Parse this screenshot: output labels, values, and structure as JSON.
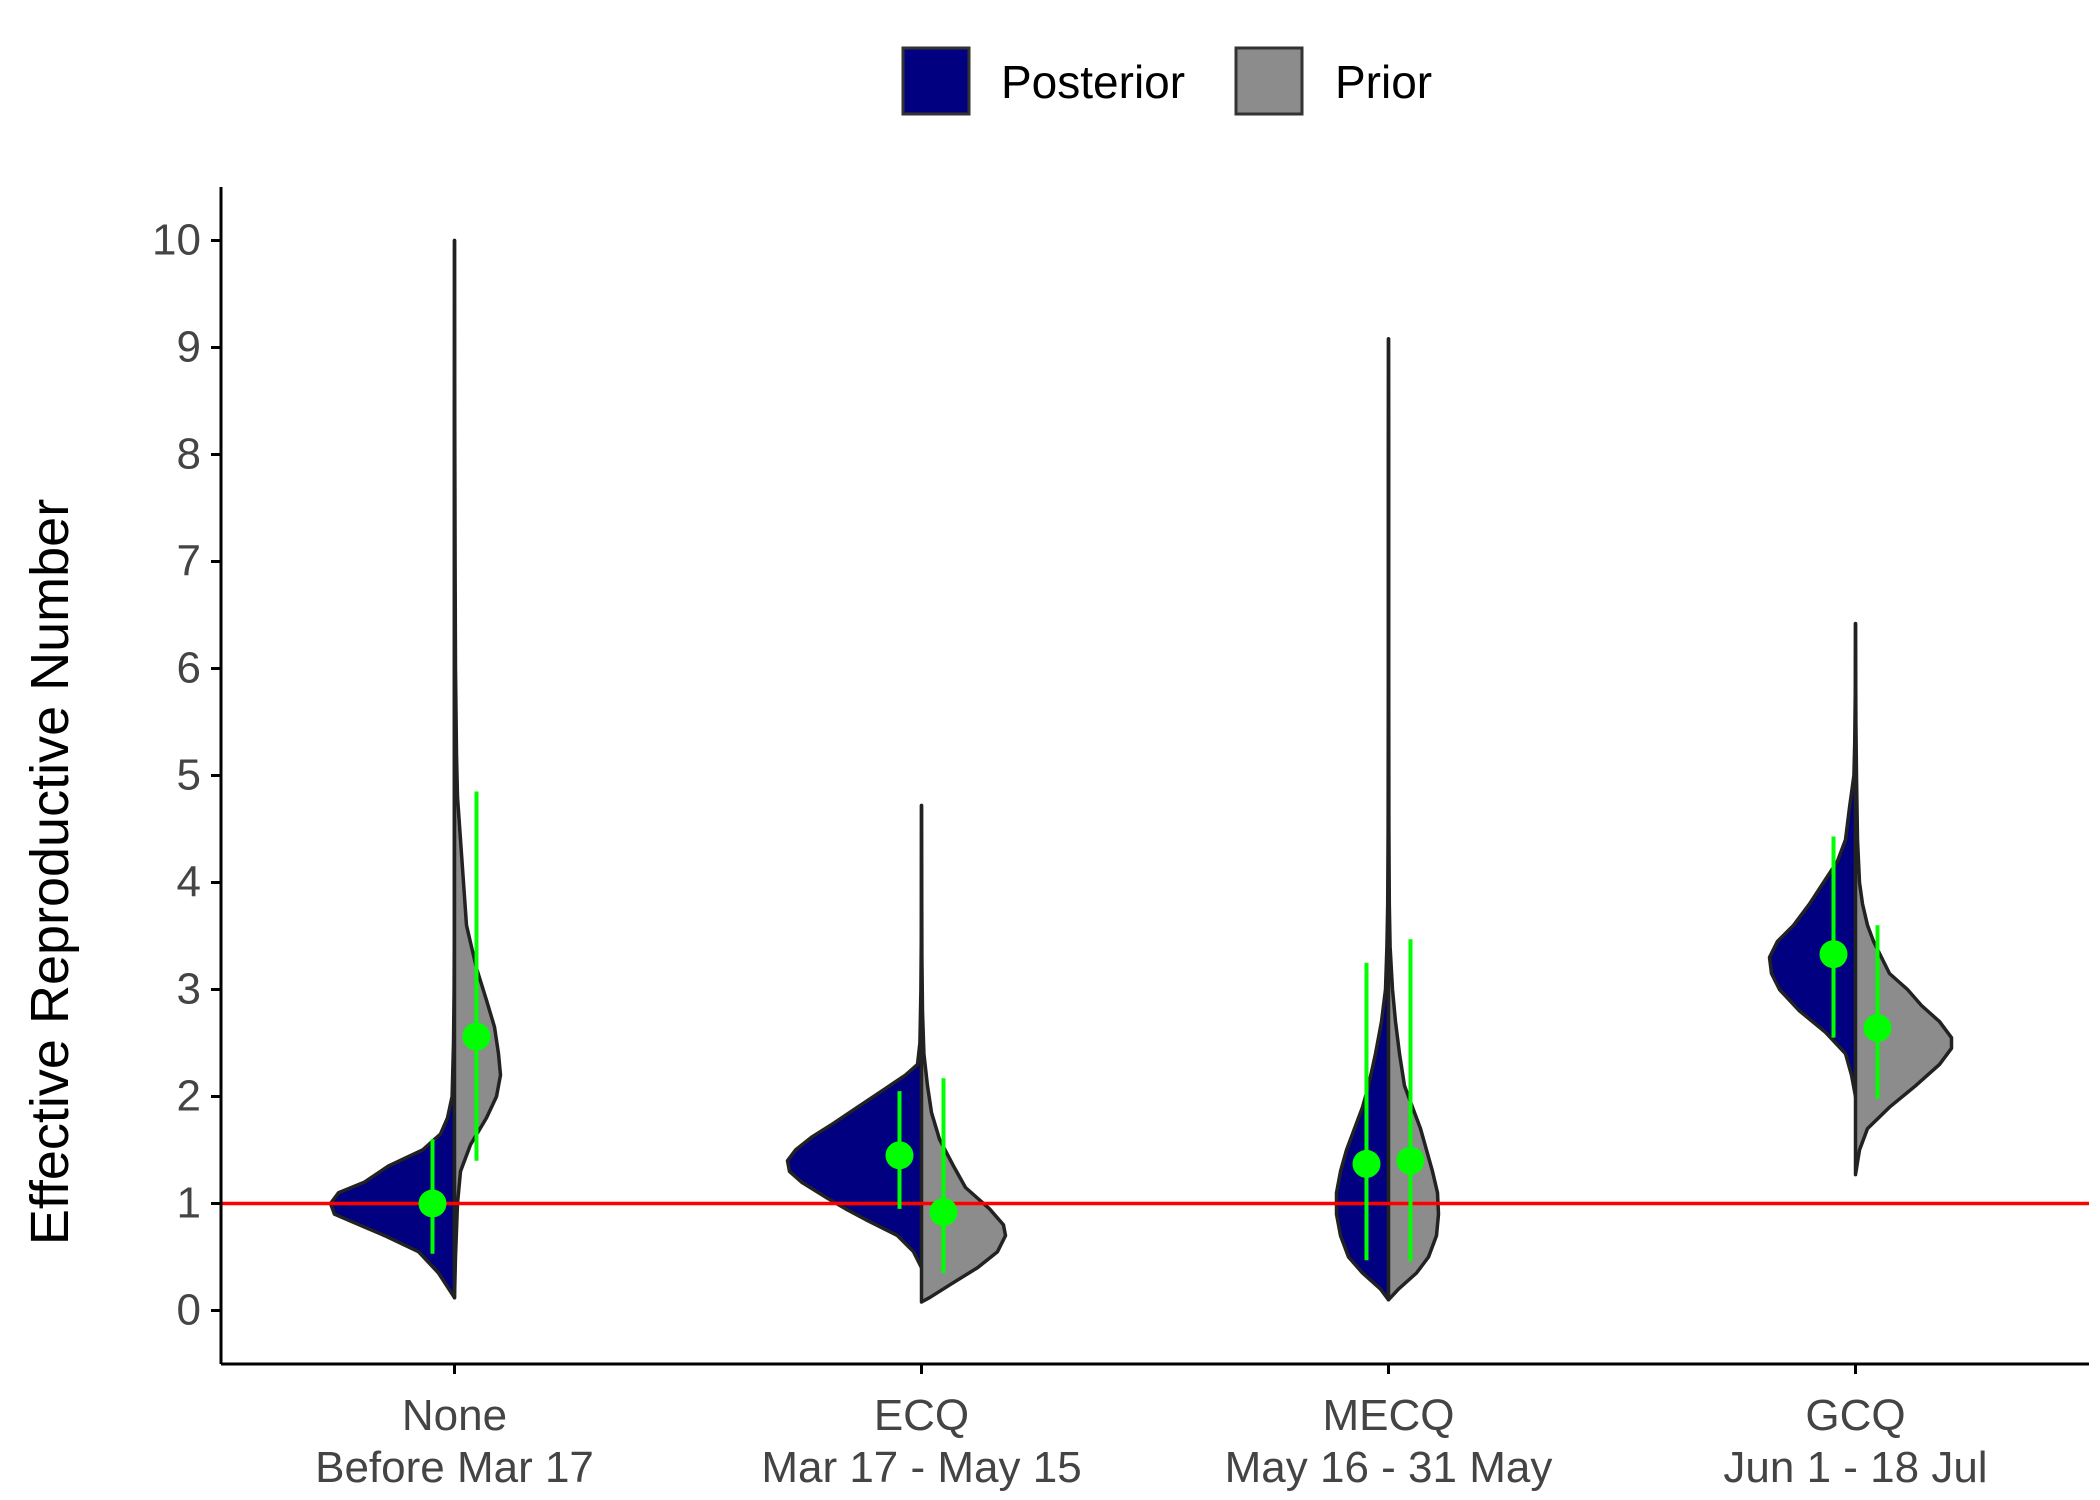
{
  "chart_data": {
    "type": "split-violin",
    "title": "",
    "xlabel": "",
    "ylabel": "Effective Reproductive Number",
    "ylim": [
      -0.5,
      10.5
    ],
    "yticks": [
      0,
      1,
      2,
      3,
      4,
      5,
      6,
      7,
      8,
      9,
      10
    ],
    "grid": false,
    "legend_position": "top",
    "reference_line": {
      "y": 1,
      "color": "#ff0000"
    },
    "categories": [
      {
        "line1": "None",
        "line2": "Before Mar 17"
      },
      {
        "line1": "ECQ",
        "line2": "Mar 17 - May 15"
      },
      {
        "line1": "MECQ",
        "line2": "May 16 - 31 May"
      },
      {
        "line1": "GCQ",
        "line2": "Jun 1 - 18 Jul"
      }
    ],
    "series": [
      {
        "name": "Posterior",
        "color": "#000080",
        "side": "left",
        "violins": [
          {
            "profile": [
              [
                0.12,
                0
              ],
              [
                0.35,
                0.08
              ],
              [
                0.55,
                0.18
              ],
              [
                0.7,
                0.35
              ],
              [
                0.82,
                0.5
              ],
              [
                0.9,
                0.6
              ],
              [
                1.0,
                0.62
              ],
              [
                1.1,
                0.58
              ],
              [
                1.2,
                0.45
              ],
              [
                1.35,
                0.33
              ],
              [
                1.5,
                0.16
              ],
              [
                1.65,
                0.07
              ],
              [
                1.8,
                0.035
              ],
              [
                2.0,
                0.012
              ],
              [
                2.5,
                0.005
              ],
              [
                3.0,
                0.002
              ],
              [
                3.5,
                0.001
              ],
              [
                4,
                0.001
              ],
              [
                6,
                0.001
              ],
              [
                8,
                0.001
              ],
              [
                10,
                0
              ]
            ],
            "median": 1.0,
            "lower": 0.53,
            "upper": 1.6
          },
          {
            "profile": [
              [
                0.4,
                0
              ],
              [
                0.55,
                0.04
              ],
              [
                0.7,
                0.12
              ],
              [
                0.85,
                0.28
              ],
              [
                0.95,
                0.38
              ],
              [
                1.05,
                0.47
              ],
              [
                1.2,
                0.6
              ],
              [
                1.3,
                0.66
              ],
              [
                1.4,
                0.67
              ],
              [
                1.5,
                0.63
              ],
              [
                1.62,
                0.55
              ],
              [
                1.75,
                0.44
              ],
              [
                1.9,
                0.32
              ],
              [
                2.05,
                0.2
              ],
              [
                2.2,
                0.08
              ],
              [
                2.3,
                0.02
              ],
              [
                2.5,
                0.008
              ],
              [
                3.0,
                0.003
              ],
              [
                3.5,
                0.001
              ],
              [
                4.72,
                0
              ]
            ],
            "median": 1.45,
            "lower": 0.95,
            "upper": 2.05
          },
          {
            "profile": [
              [
                0.1,
                0
              ],
              [
                0.2,
                0.04
              ],
              [
                0.35,
                0.13
              ],
              [
                0.5,
                0.2
              ],
              [
                0.7,
                0.24
              ],
              [
                0.9,
                0.26
              ],
              [
                1.1,
                0.26
              ],
              [
                1.3,
                0.24
              ],
              [
                1.5,
                0.21
              ],
              [
                1.7,
                0.17
              ],
              [
                1.9,
                0.13
              ],
              [
                2.1,
                0.1
              ],
              [
                2.4,
                0.065
              ],
              [
                2.7,
                0.035
              ],
              [
                3.0,
                0.015
              ],
              [
                3.4,
                0.008
              ],
              [
                3.8,
                0.004
              ],
              [
                4.5,
                0.002
              ],
              [
                6,
                0.001
              ],
              [
                8,
                0.001
              ],
              [
                9.08,
                0
              ]
            ],
            "median": 1.37,
            "lower": 0.47,
            "upper": 3.25
          },
          {
            "profile": [
              [
                2.0,
                0
              ],
              [
                2.2,
                0.02
              ],
              [
                2.4,
                0.05
              ],
              [
                2.6,
                0.15
              ],
              [
                2.8,
                0.28
              ],
              [
                3.0,
                0.38
              ],
              [
                3.15,
                0.42
              ],
              [
                3.3,
                0.43
              ],
              [
                3.45,
                0.39
              ],
              [
                3.6,
                0.31
              ],
              [
                3.8,
                0.23
              ],
              [
                4.0,
                0.16
              ],
              [
                4.2,
                0.09
              ],
              [
                4.4,
                0.05
              ],
              [
                4.7,
                0.03
              ],
              [
                5.0,
                0.008
              ],
              [
                5.3,
                0.004
              ],
              [
                5.8,
                0.001
              ],
              [
                6.42,
                0
              ]
            ],
            "median": 3.33,
            "lower": 2.55,
            "upper": 4.43
          }
        ]
      },
      {
        "name": "Prior",
        "color": "#8c8c8c",
        "side": "right",
        "violins": [
          {
            "profile": [
              [
                0.12,
                0
              ],
              [
                0.5,
                0.005
              ],
              [
                1.0,
                0.015
              ],
              [
                1.3,
                0.03
              ],
              [
                1.55,
                0.08
              ],
              [
                1.8,
                0.16
              ],
              [
                2.0,
                0.21
              ],
              [
                2.2,
                0.23
              ],
              [
                2.4,
                0.22
              ],
              [
                2.65,
                0.2
              ],
              [
                2.9,
                0.16
              ],
              [
                3.2,
                0.11
              ],
              [
                3.6,
                0.06
              ],
              [
                4.0,
                0.045
              ],
              [
                4.4,
                0.03
              ],
              [
                4.8,
                0.015
              ],
              [
                5.2,
                0.01
              ],
              [
                6,
                0.005
              ],
              [
                7,
                0.003
              ],
              [
                8.5,
                0.001
              ],
              [
                10,
                0
              ]
            ],
            "median": 2.56,
            "lower": 1.4,
            "upper": 4.85
          },
          {
            "profile": [
              [
                0.08,
                0
              ],
              [
                0.12,
                0.04
              ],
              [
                0.25,
                0.15
              ],
              [
                0.4,
                0.28
              ],
              [
                0.55,
                0.38
              ],
              [
                0.7,
                0.42
              ],
              [
                0.8,
                0.41
              ],
              [
                0.95,
                0.34
              ],
              [
                1.15,
                0.22
              ],
              [
                1.35,
                0.16
              ],
              [
                1.6,
                0.09
              ],
              [
                1.85,
                0.05
              ],
              [
                2.1,
                0.03
              ],
              [
                2.4,
                0.012
              ],
              [
                2.8,
                0.005
              ],
              [
                3.3,
                0.002
              ],
              [
                4.0,
                0.001
              ],
              [
                4.72,
                0
              ]
            ],
            "median": 0.92,
            "lower": 0.35,
            "upper": 2.17
          },
          {
            "profile": [
              [
                0.1,
                0
              ],
              [
                0.2,
                0.05
              ],
              [
                0.35,
                0.14
              ],
              [
                0.5,
                0.2
              ],
              [
                0.7,
                0.24
              ],
              [
                0.9,
                0.25
              ],
              [
                1.1,
                0.245
              ],
              [
                1.3,
                0.22
              ],
              [
                1.5,
                0.19
              ],
              [
                1.7,
                0.16
              ],
              [
                1.9,
                0.12
              ],
              [
                2.1,
                0.08
              ],
              [
                2.4,
                0.055
              ],
              [
                2.7,
                0.035
              ],
              [
                3.0,
                0.02
              ],
              [
                3.4,
                0.008
              ],
              [
                3.8,
                0.004
              ],
              [
                4.5,
                0.002
              ],
              [
                6,
                0.001
              ],
              [
                8,
                0.001
              ],
              [
                9.08,
                0
              ]
            ],
            "median": 1.4,
            "lower": 0.46,
            "upper": 3.47
          },
          {
            "profile": [
              [
                1.27,
                0
              ],
              [
                1.5,
                0.02
              ],
              [
                1.7,
                0.06
              ],
              [
                1.9,
                0.17
              ],
              [
                2.1,
                0.3
              ],
              [
                2.3,
                0.42
              ],
              [
                2.45,
                0.48
              ],
              [
                2.55,
                0.48
              ],
              [
                2.7,
                0.42
              ],
              [
                2.85,
                0.33
              ],
              [
                3.0,
                0.26
              ],
              [
                3.15,
                0.17
              ],
              [
                3.3,
                0.13
              ],
              [
                3.45,
                0.09
              ],
              [
                3.6,
                0.06
              ],
              [
                3.8,
                0.035
              ],
              [
                4.0,
                0.02
              ],
              [
                4.4,
                0.01
              ],
              [
                5.0,
                0.005
              ],
              [
                5.5,
                0.002
              ],
              [
                6.42,
                0
              ]
            ],
            "median": 2.64,
            "lower": 1.98,
            "upper": 3.6
          }
        ]
      }
    ]
  }
}
